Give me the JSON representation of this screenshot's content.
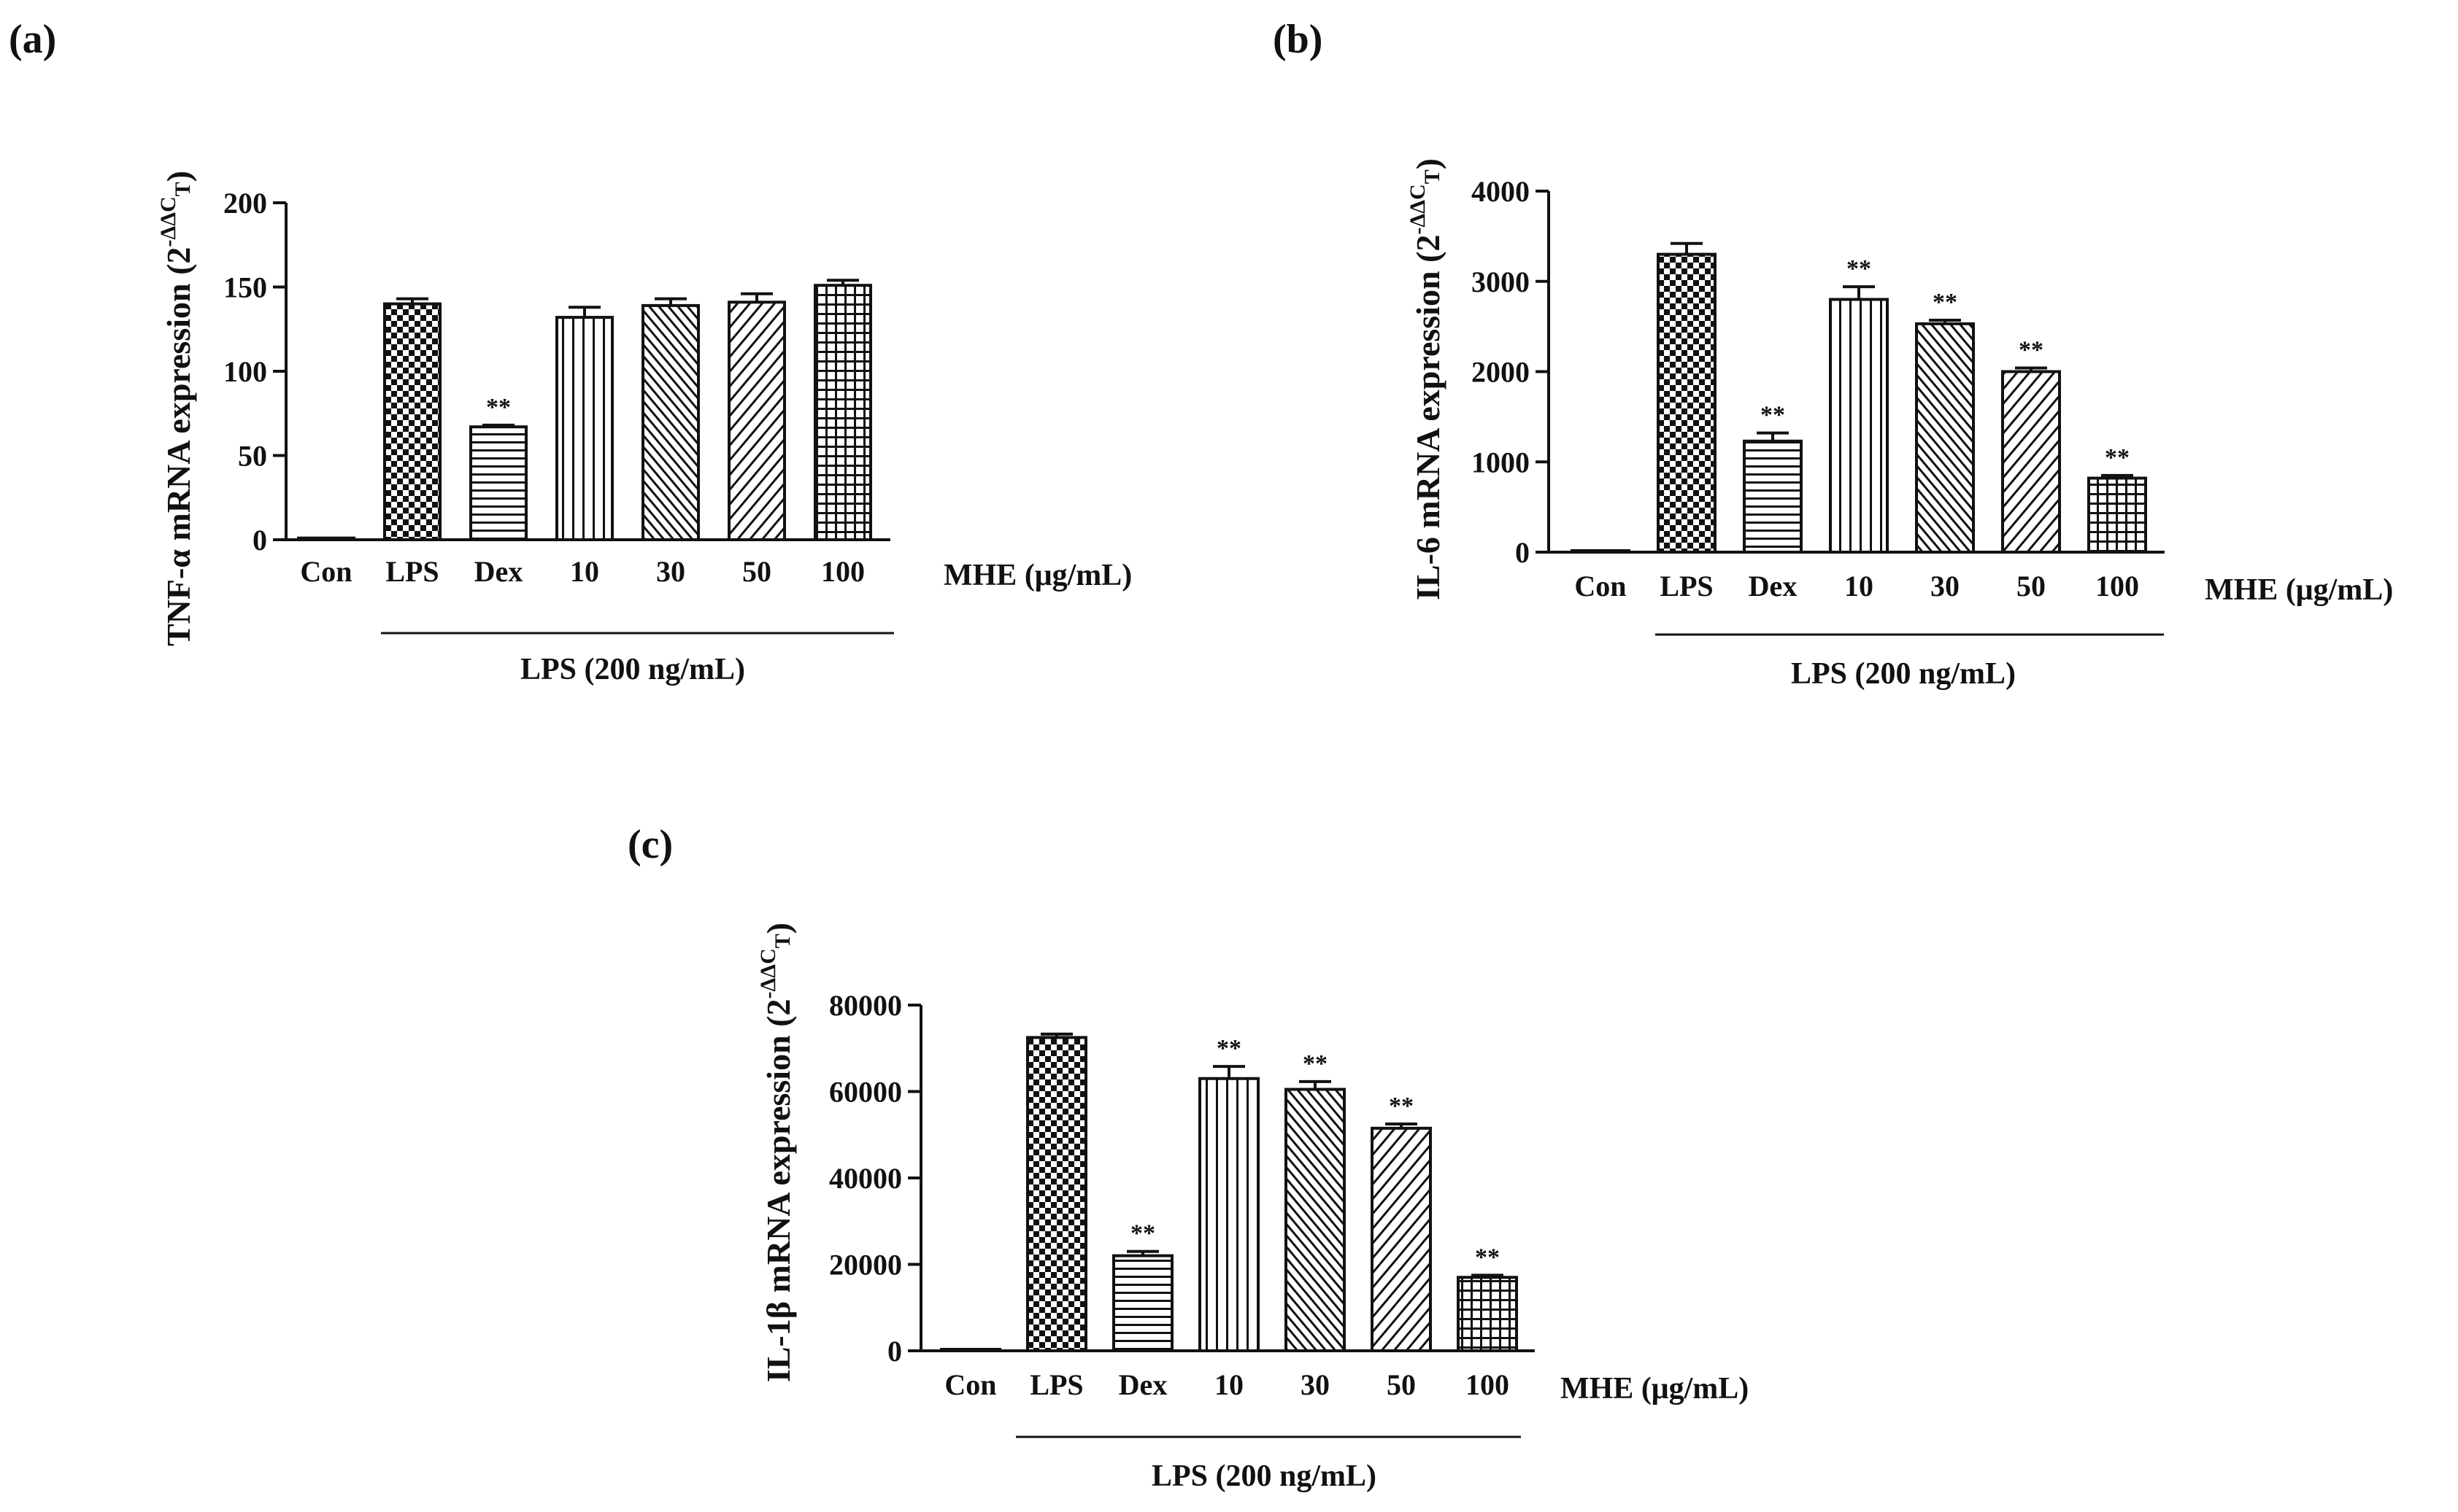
{
  "chart_data": [
    {
      "panel": "(a)",
      "type": "bar",
      "categories": [
        "Con",
        "LPS",
        "Dex",
        "10",
        "30",
        "50",
        "100"
      ],
      "values": [
        1,
        140,
        67,
        132,
        139,
        141,
        151
      ],
      "errors": [
        0,
        3,
        1,
        6,
        4,
        5,
        3
      ],
      "significance": [
        "",
        "",
        "**",
        "",
        "",
        "",
        ""
      ],
      "patterns": [
        "none",
        "checker",
        "hlines",
        "vlines",
        "diag-fine",
        "diag-coarse",
        "grid"
      ],
      "ylabel_main": "TNF-α mRNA expression (2",
      "ylabel_sup": "-ΔΔC",
      "ylabel_sub": "T",
      "ylabel_close": ")",
      "yticks": [
        "0",
        "50",
        "100",
        "150",
        "200"
      ],
      "ylim": [
        0,
        200
      ],
      "unit_label": "MHE (μg/mL)",
      "group_label": "LPS (200 ng/mL)"
    },
    {
      "panel": "(b)",
      "type": "bar",
      "categories": [
        "Con",
        "LPS",
        "Dex",
        "10",
        "30",
        "50",
        "100"
      ],
      "values": [
        0,
        3300,
        1230,
        2800,
        2530,
        2000,
        820
      ],
      "errors": [
        0,
        120,
        90,
        140,
        40,
        40,
        30
      ],
      "significance": [
        "",
        "",
        "**",
        "**",
        "**",
        "**",
        "**"
      ],
      "patterns": [
        "none",
        "checker",
        "hlines",
        "vlines",
        "diag-fine",
        "diag-coarse",
        "grid"
      ],
      "ylabel_main": "IL-6 mRNA expression (2",
      "ylabel_sup": "-ΔΔC",
      "ylabel_sub": "T",
      "ylabel_close": ")",
      "yticks": [
        "0",
        "1000",
        "2000",
        "3000",
        "4000"
      ],
      "ylim": [
        0,
        4000
      ],
      "unit_label": "MHE (μg/mL)",
      "group_label": "LPS (200 ng/mL)"
    },
    {
      "panel": "(c)",
      "type": "bar",
      "categories": [
        "Con",
        "LPS",
        "Dex",
        "10",
        "30",
        "50",
        "100"
      ],
      "values": [
        0,
        72500,
        22000,
        63000,
        60500,
        51500,
        17000
      ],
      "errors": [
        0,
        800,
        1000,
        2800,
        1800,
        1000,
        500
      ],
      "significance": [
        "",
        "",
        "**",
        "**",
        "**",
        "**",
        "**"
      ],
      "patterns": [
        "none",
        "checker",
        "hlines",
        "vlines",
        "diag-fine",
        "diag-coarse",
        "grid"
      ],
      "ylabel_main": "IL-1β mRNA expression (2",
      "ylabel_sup": "-ΔΔC",
      "ylabel_sub": "T",
      "ylabel_close": ")",
      "yticks": [
        "0",
        "20000",
        "40000",
        "60000",
        "80000"
      ],
      "ylim": [
        0,
        80000
      ],
      "unit_label": "MHE (μg/mL)",
      "group_label": "LPS (200 ng/mL)"
    }
  ],
  "colors": {
    "ink": "#111111",
    "fill": "#ffffff"
  }
}
